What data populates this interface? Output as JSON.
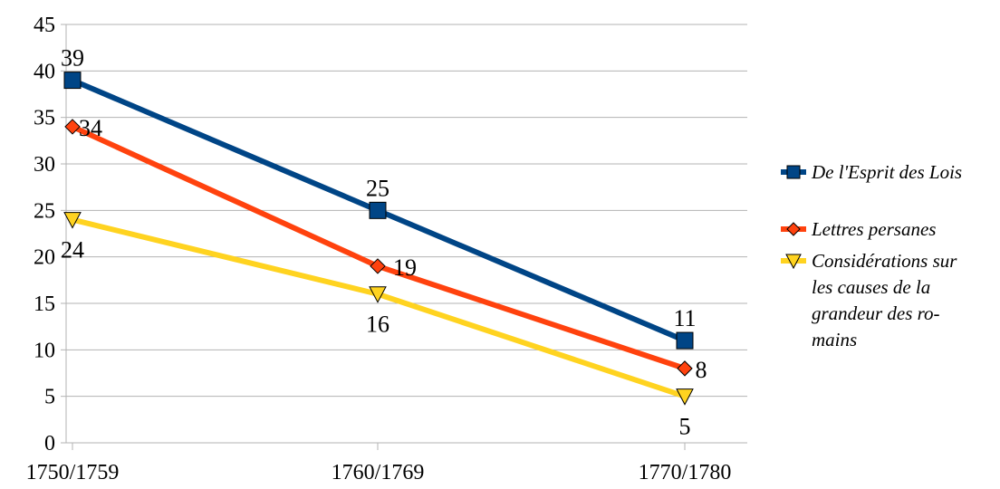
{
  "chart_data": {
    "type": "line",
    "title": "",
    "xlabel": "",
    "ylabel": "",
    "categories": [
      "1750/1759",
      "1760/1769",
      "1770/1780"
    ],
    "ylim": [
      0,
      45
    ],
    "y_ticks": [
      0,
      5,
      10,
      15,
      20,
      25,
      30,
      35,
      40,
      45
    ],
    "grid": "horizontal",
    "legend_position": "right",
    "series": [
      {
        "name": "De l'Esprit des Lois",
        "legend_lines": [
          "De l'Esprit des Lois"
        ],
        "values": [
          39,
          25,
          11
        ],
        "color": "#004586",
        "marker": "square"
      },
      {
        "name": "Lettres persanes",
        "legend_lines": [
          "Lettres persanes"
        ],
        "values": [
          34,
          19,
          8
        ],
        "color": "#ff420e",
        "marker": "diamond"
      },
      {
        "name": "Considérations sur les causes de la grandeur des romains",
        "legend_lines": [
          "Considérations sur",
          "les causes de la",
          "grandeur des ro-",
          "mains"
        ],
        "values": [
          24,
          16,
          5
        ],
        "color": "#ffd320",
        "marker": "triangle-down"
      }
    ]
  }
}
